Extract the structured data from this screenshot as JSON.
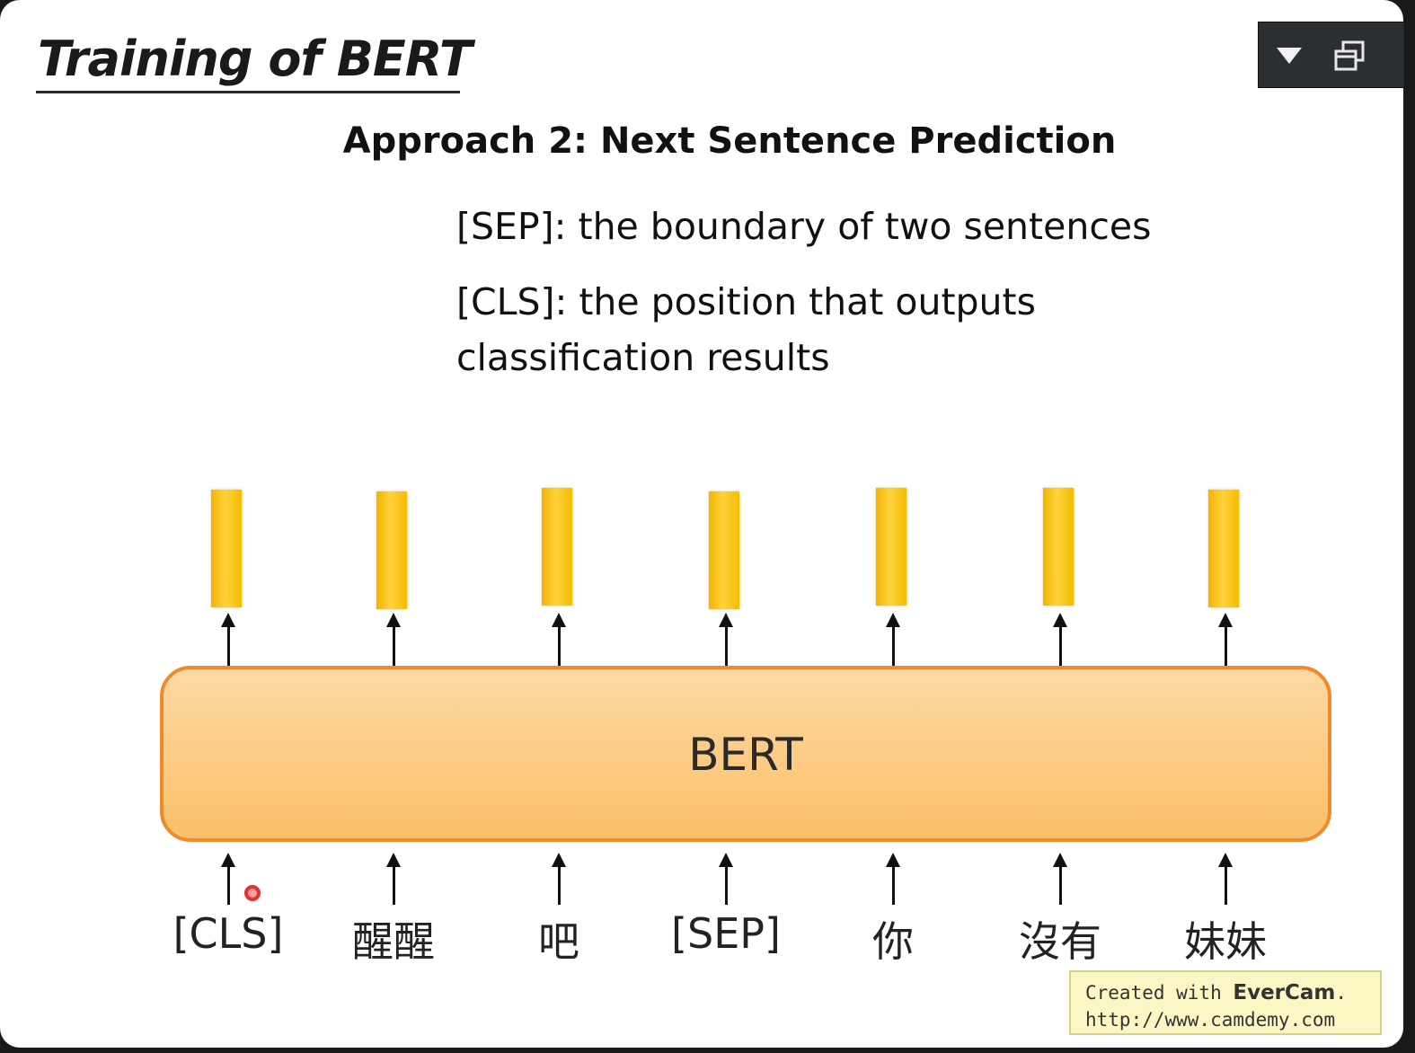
{
  "title": "Training of BERT",
  "subtitle": "Approach 2: Next Sentence Prediction",
  "notes": {
    "sep": "[SEP]: the boundary of two sentences",
    "cls_line1": "[CLS]: the position that outputs",
    "cls_line2": "classification results"
  },
  "model_label": "BERT",
  "tokens": [
    "[CLS]",
    "醒醒",
    "吧",
    "[SEP]",
    "你",
    "沒有",
    "妹妹"
  ],
  "colors": {
    "vector": "#f5bc00",
    "model_fill": "#fbc874",
    "model_border": "#f08a2c"
  },
  "toolbar": {
    "dropdown_icon": "triangle-down-icon",
    "restore_icon": "window-restore-icon"
  },
  "watermark": {
    "prefix": "Created with ",
    "brand": "EverCam",
    "suffix": ".",
    "url": "http://www.camdemy.com"
  }
}
